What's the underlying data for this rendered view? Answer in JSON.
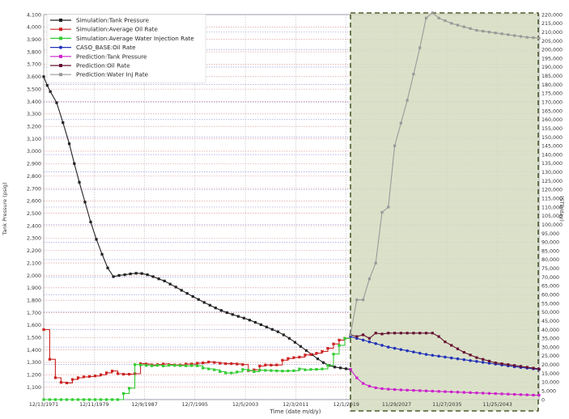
{
  "chart_data": {
    "type": "line",
    "xlabel": "Time (date m/d/y)",
    "ylabel_left": "Tank Pressure (psig)",
    "ylabel_right": "(STB/day)",
    "x_ticks": [
      "12/13/1971",
      "12/11/1979",
      "12/9/1987",
      "12/7/1995",
      "12/5/2003",
      "12/3/2011",
      "12/1/2019",
      "11/29/2027",
      "11/27/2035",
      "11/25/2043"
    ],
    "x_tick_years": [
      1971.95,
      1979.95,
      1987.94,
      1995.93,
      2003.93,
      2011.92,
      2019.92,
      2027.91,
      2035.91,
      2043.9
    ],
    "xlim": [
      1971.95,
      2050.5
    ],
    "ylim_left": [
      1000,
      4100
    ],
    "y_ticks_left": [
      1100,
      1200,
      1300,
      1400,
      1500,
      1600,
      1700,
      1800,
      1900,
      2000,
      2100,
      2200,
      2300,
      2400,
      2500,
      2600,
      2700,
      2800,
      2900,
      3000,
      3100,
      3200,
      3300,
      3400,
      3500,
      3600,
      3700,
      3800,
      3900,
      4000,
      4100
    ],
    "y_tick_labels_left": [
      "1,100",
      "1,200",
      "1,300",
      "1,400",
      "1,500",
      "1,600",
      "1,700",
      "1,800",
      "1,900",
      "2,000",
      "2,100",
      "2,200",
      "2,300",
      "2,400",
      "2,500",
      "2,600",
      "2,700",
      "2,800",
      "2,900",
      "3,000",
      "3,100",
      "3,200",
      "3,300",
      "3,400",
      "3,500",
      "3,600",
      "3,700",
      "3,800",
      "3,900",
      "4,000",
      "4,100"
    ],
    "ylim_right": [
      0,
      220000
    ],
    "y_ticks_right": [
      0,
      5000,
      10000,
      15000,
      20000,
      25000,
      30000,
      35000,
      40000,
      45000,
      50000,
      55000,
      60000,
      65000,
      70000,
      75000,
      80000,
      85000,
      90000,
      95000,
      100000,
      105000,
      110000,
      115000,
      120000,
      125000,
      130000,
      135000,
      140000,
      145000,
      150000,
      155000,
      160000,
      165000,
      170000,
      175000,
      180000,
      185000,
      190000,
      195000,
      200000,
      205000,
      210000,
      215000,
      220000
    ],
    "y_tick_labels_right": [
      "0",
      "5,000",
      "10,000",
      "15,000",
      "20,000",
      "25,000",
      "30,000",
      "35,000",
      "40,000",
      "45,000",
      "50,000",
      "55,000",
      "60,000",
      "65,000",
      "70,000",
      "75,000",
      "80,000",
      "85,000",
      "90,000",
      "95,000",
      "100,000",
      "105,000",
      "110,000",
      "115,000",
      "120,000",
      "125,000",
      "130,000",
      "135,000",
      "140,000",
      "145,000",
      "150,000",
      "155,000",
      "160,000",
      "165,000",
      "170,000",
      "175,000",
      "180,000",
      "185,000",
      "190,000",
      "195,000",
      "200,000",
      "205,000",
      "210,000",
      "215,000",
      "220,000"
    ],
    "grid": true,
    "legend_position": "top-left",
    "prediction_region": {
      "x_start": 2020.6,
      "x_end": 2050.5,
      "color": "#d5dcbf"
    },
    "series": [
      {
        "name": "Simulation:Tank Pressure",
        "color": "#222222",
        "axis": "left",
        "step": false,
        "marker": "square",
        "x": [
          1971.95,
          1972.5,
          1973.0,
          1974.0,
          1975.0,
          1976.0,
          1976.8,
          1977.6,
          1978.5,
          1979.4,
          1980.3,
          1981.2,
          1982.1,
          1983.0,
          1983.9,
          1984.8,
          1985.7,
          1986.6,
          1987.5,
          1988.4,
          1989.3,
          1990.2,
          1991.1,
          1992.0,
          1992.9,
          1993.8,
          1994.7,
          1995.6,
          1996.5,
          1997.4,
          1998.3,
          1999.2,
          2000.1,
          2001.0,
          2001.9,
          2002.8,
          2003.7,
          2004.6,
          2005.5,
          2006.4,
          2007.3,
          2008.2,
          2009.1,
          2010.0,
          2010.9,
          2011.8,
          2012.7,
          2013.6,
          2014.5,
          2015.4,
          2016.3,
          2017.2,
          2018.1,
          2019.0,
          2019.9,
          2020.6
        ],
        "y": [
          3600,
          3530,
          3480,
          3390,
          3230,
          3060,
          2900,
          2750,
          2590,
          2430,
          2290,
          2170,
          2060,
          1990,
          2000,
          2005,
          2012,
          2017,
          2015,
          2005,
          1990,
          1972,
          1955,
          1930,
          1906,
          1880,
          1855,
          1830,
          1806,
          1782,
          1760,
          1738,
          1718,
          1700,
          1685,
          1670,
          1656,
          1640,
          1622,
          1603,
          1584,
          1565,
          1546,
          1521,
          1493,
          1461,
          1428,
          1395,
          1362,
          1328,
          1298,
          1275,
          1262,
          1255,
          1248,
          1243
        ]
      },
      {
        "name": "Simulation:Average Oil Rate",
        "color": "#cc2222",
        "axis": "right",
        "step": true,
        "marker": "square",
        "x": [
          1971.95,
          1972.9,
          1973.8,
          1974.7,
          1975.6,
          1976.5,
          1977.4,
          1978.3,
          1979.2,
          1980.1,
          1981.0,
          1981.9,
          1982.8,
          1983.7,
          1984.6,
          1985.5,
          1986.4,
          1987.3,
          1988.2,
          1989.1,
          1990.0,
          1990.9,
          1991.8,
          1992.7,
          1993.6,
          1994.5,
          1995.4,
          1996.3,
          1997.2,
          1998.1,
          1999.0,
          1999.9,
          2000.8,
          2001.7,
          2002.6,
          2003.5,
          2004.4,
          2005.3,
          2006.2,
          2007.1,
          2008.0,
          2008.9,
          2009.8,
          2010.7,
          2011.6,
          2012.5,
          2013.4,
          2014.3,
          2015.2,
          2016.1,
          2017.0,
          2017.9,
          2018.8,
          2019.7,
          2020.6
        ],
        "y": [
          40000,
          23000,
          12500,
          9800,
          9500,
          11500,
          12500,
          13000,
          13200,
          13500,
          14200,
          15300,
          16300,
          14800,
          14500,
          14500,
          14800,
          20500,
          20300,
          19800,
          20000,
          20300,
          20000,
          19800,
          19800,
          20300,
          20300,
          20800,
          21000,
          21500,
          21200,
          20800,
          20500,
          20500,
          20300,
          20000,
          16500,
          17000,
          19200,
          19800,
          19700,
          19800,
          22500,
          23500,
          24000,
          24300,
          25500,
          25800,
          26500,
          27500,
          29300,
          31800,
          34000,
          35000,
          37000
        ]
      },
      {
        "name": "Simulation:Average Water Injection Rate",
        "color": "#33cc33",
        "axis": "right",
        "step": true,
        "marker": "square",
        "x": [
          1971.95,
          1972.9,
          1973.8,
          1974.7,
          1975.6,
          1976.5,
          1977.4,
          1978.3,
          1979.2,
          1980.1,
          1981.0,
          1981.9,
          1982.8,
          1983.7,
          1984.6,
          1985.5,
          1986.4,
          1987.3,
          1988.2,
          1989.1,
          1990.0,
          1990.9,
          1991.8,
          1992.7,
          1993.6,
          1994.5,
          1995.4,
          1996.3,
          1997.2,
          1998.1,
          1999.0,
          1999.9,
          2000.8,
          2001.7,
          2002.6,
          2003.5,
          2004.4,
          2005.3,
          2006.2,
          2007.1,
          2008.0,
          2008.9,
          2009.8,
          2010.7,
          2011.6,
          2012.5,
          2013.4,
          2014.3,
          2015.2,
          2016.1,
          2017.0,
          2017.9,
          2018.8,
          2019.7,
          2020.6
        ],
        "y": [
          0,
          0,
          0,
          0,
          0,
          0,
          0,
          0,
          0,
          0,
          0,
          0,
          0,
          0,
          3500,
          6500,
          20000,
          19800,
          19500,
          19300,
          19600,
          19200,
          19600,
          19500,
          19400,
          19300,
          19400,
          19300,
          18000,
          17500,
          17000,
          16000,
          15200,
          15200,
          15800,
          17200,
          16700,
          16000,
          16800,
          16700,
          16600,
          16400,
          16300,
          16400,
          16500,
          17500,
          17000,
          17200,
          17300,
          17500,
          19500,
          26000,
          31000,
          35000,
          37000
        ]
      },
      {
        "name": "CASO_BASE:Oil Rate",
        "color": "#2233bb",
        "axis": "right",
        "step": false,
        "marker": "circle",
        "x": [
          2020.6,
          2021.6,
          2022.6,
          2023.6,
          2024.6,
          2025.6,
          2026.6,
          2027.6,
          2028.6,
          2029.6,
          2030.6,
          2031.6,
          2032.6,
          2033.6,
          2034.6,
          2035.6,
          2036.6,
          2037.6,
          2038.6,
          2039.6,
          2040.6,
          2041.6,
          2042.6,
          2043.6,
          2044.6,
          2045.6,
          2046.6,
          2047.6,
          2048.6,
          2049.6,
          2050.5
        ],
        "y": [
          36000,
          35000,
          34000,
          33000,
          32000,
          31000,
          30000,
          29300,
          28600,
          27900,
          27200,
          26500,
          25800,
          25300,
          24800,
          24300,
          23800,
          23300,
          22800,
          22300,
          21800,
          21300,
          20800,
          20300,
          19800,
          19300,
          18800,
          18400,
          18000,
          17600,
          17200
        ]
      },
      {
        "name": "Prediction:Tank Pressure",
        "color": "#cc22cc",
        "axis": "left",
        "step": false,
        "marker": "square",
        "x": [
          2020.6,
          2021.6,
          2022.6,
          2023.6,
          2024.6,
          2025.6,
          2026.6,
          2027.6,
          2028.6,
          2029.6,
          2030.6,
          2031.6,
          2032.6,
          2033.6,
          2034.6,
          2035.6,
          2036.6,
          2037.6,
          2038.6,
          2039.6,
          2040.6,
          2041.6,
          2042.6,
          2043.6,
          2044.6,
          2045.6,
          2046.6,
          2047.6,
          2048.6,
          2049.6,
          2050.5
        ],
        "y": [
          1243,
          1175,
          1130,
          1108,
          1095,
          1088,
          1084,
          1081,
          1078,
          1076,
          1074,
          1072,
          1070,
          1068,
          1066,
          1064,
          1062,
          1060,
          1058,
          1056,
          1054,
          1052,
          1050,
          1048,
          1046,
          1044,
          1042,
          1040,
          1038,
          1036,
          1035
        ]
      },
      {
        "name": "Prediction:Oil Rate",
        "color": "#661133",
        "axis": "right",
        "step": false,
        "marker": "square",
        "x": [
          2020.6,
          2021.6,
          2022.6,
          2023.6,
          2024.6,
          2025.6,
          2026.6,
          2027.6,
          2028.6,
          2029.6,
          2030.6,
          2031.6,
          2032.6,
          2033.6,
          2034.6,
          2035.6,
          2036.6,
          2037.6,
          2038.6,
          2039.6,
          2040.6,
          2041.6,
          2042.6,
          2043.6,
          2044.6,
          2045.6,
          2046.6,
          2047.6,
          2048.6,
          2049.6,
          2050.5
        ],
        "y": [
          37000,
          36000,
          37000,
          35000,
          38000,
          37500,
          38000,
          38000,
          38000,
          38000,
          38000,
          38000,
          38000,
          38000,
          36000,
          33000,
          31000,
          29000,
          27000,
          25500,
          24000,
          23000,
          22000,
          21000,
          20500,
          20000,
          19500,
          19000,
          18500,
          18000,
          17500
        ]
      },
      {
        "name": "Prediction:Water Inj Rate",
        "color": "#999999",
        "axis": "right",
        "step": false,
        "marker": "square",
        "x": [
          2020.6,
          2021.6,
          2022.6,
          2023.6,
          2024.6,
          2025.6,
          2026.6,
          2027.6,
          2028.6,
          2029.6,
          2030.6,
          2031.6,
          2032.6,
          2033.6,
          2034.6,
          2035.6,
          2036.6,
          2037.6,
          2038.6,
          2039.6,
          2040.6,
          2041.6,
          2042.6,
          2043.6,
          2044.6,
          2045.6,
          2046.6,
          2047.6,
          2048.6,
          2049.6,
          2050.5
        ],
        "y": [
          37000,
          57000,
          57000,
          69000,
          78000,
          107000,
          110000,
          145000,
          158000,
          171000,
          186000,
          201000,
          218000,
          221000,
          218000,
          216500,
          215000,
          214000,
          213000,
          212000,
          211000,
          210500,
          210000,
          209500,
          209000,
          208500,
          208000,
          207500,
          207000,
          206800,
          206500
        ]
      }
    ]
  }
}
